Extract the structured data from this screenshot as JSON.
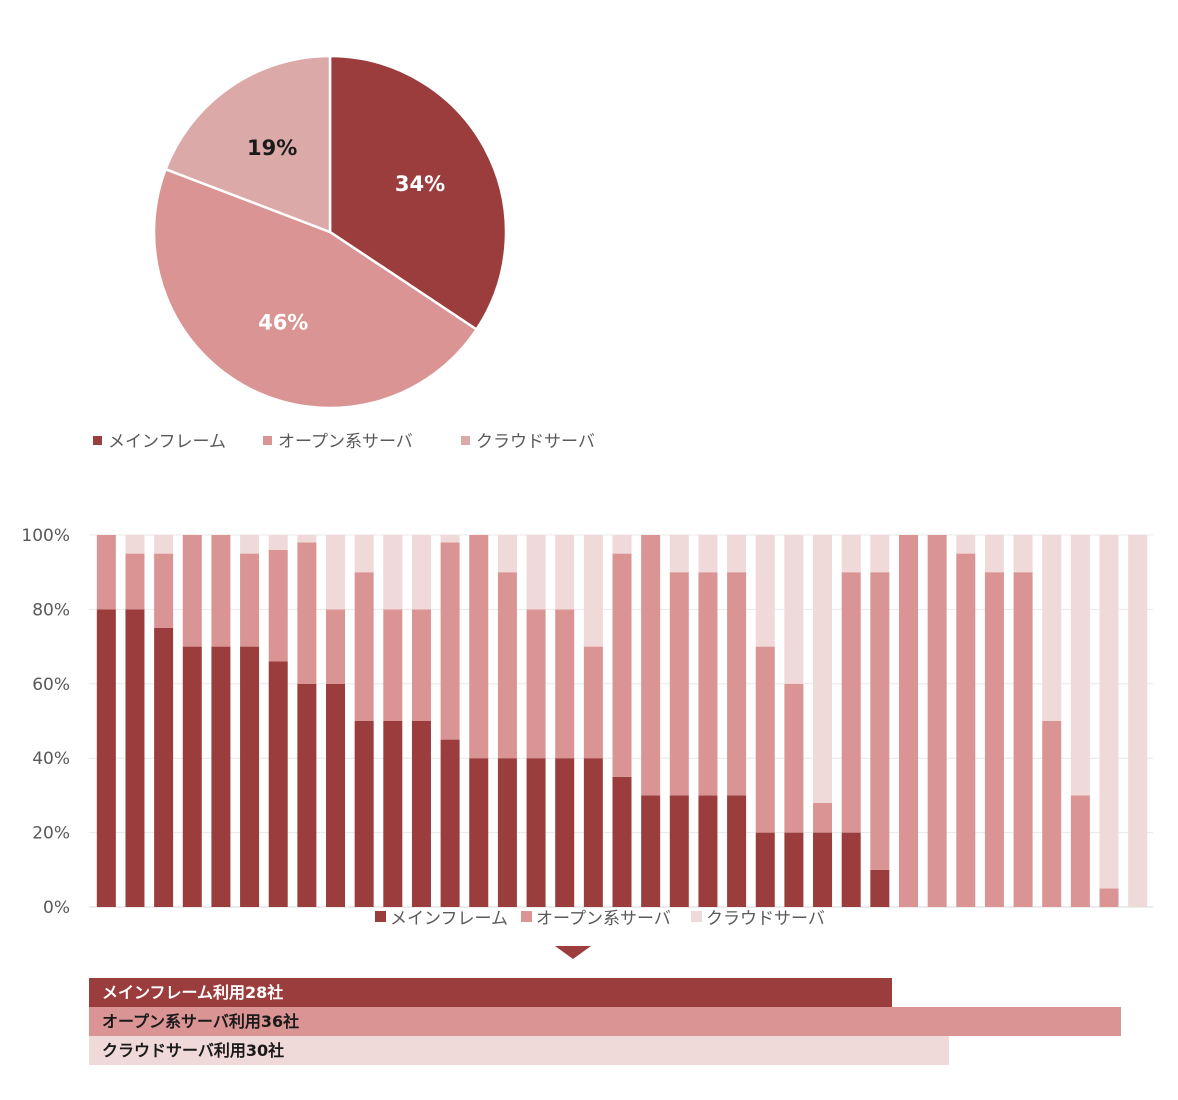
{
  "colors": {
    "mainframe": "#9b3d3c",
    "open": "#d99493",
    "cloud": "#f0d9d9",
    "cloud_pie": "#daa9a8",
    "label_dark": "#1a1a1a",
    "label_light": "#ffffff"
  },
  "chart_data": [
    {
      "type": "pie",
      "slices": [
        {
          "name": "メインフレーム",
          "value": 34,
          "label": "34%"
        },
        {
          "name": "オープン系サーバ",
          "value": 46,
          "label": "46%"
        },
        {
          "name": "クラウドサーバ",
          "value": 19,
          "label": "19%"
        }
      ],
      "legend_position": "bottom"
    },
    {
      "type": "bar",
      "stacked": true,
      "ylim": [
        0,
        100
      ],
      "yticks": [
        "0%",
        "20%",
        "40%",
        "60%",
        "80%",
        "100%"
      ],
      "ytick_values": [
        0,
        20,
        40,
        60,
        80,
        100
      ],
      "grid": true,
      "legend_position": "bottom",
      "series": [
        {
          "name": "メインフレーム",
          "values": [
            80,
            80,
            75,
            70,
            70,
            70,
            66,
            60,
            60,
            50,
            50,
            50,
            45,
            40,
            40,
            40,
            40,
            40,
            35,
            30,
            30,
            30,
            30,
            20,
            20,
            20,
            20,
            10,
            0,
            0,
            0,
            0,
            0,
            0,
            0,
            0,
            0
          ]
        },
        {
          "name": "オープン系サーバ",
          "values": [
            20,
            15,
            20,
            30,
            30,
            25,
            30,
            38,
            20,
            40,
            30,
            30,
            53,
            60,
            50,
            40,
            40,
            30,
            60,
            70,
            60,
            60,
            60,
            50,
            40,
            8,
            70,
            80,
            100,
            100,
            95,
            90,
            90,
            50,
            30,
            5,
            0
          ]
        },
        {
          "name": "クラウドサーバ",
          "values": [
            0,
            5,
            5,
            0,
            0,
            5,
            4,
            2,
            20,
            10,
            20,
            20,
            2,
            0,
            10,
            20,
            20,
            30,
            5,
            0,
            10,
            10,
            10,
            30,
            40,
            72,
            10,
            10,
            0,
            0,
            5,
            10,
            10,
            50,
            70,
            95,
            100
          ]
        }
      ]
    }
  ],
  "summary": {
    "mainframe": {
      "label": "メインフレーム利用28社",
      "count": 28
    },
    "open": {
      "label": "オープン系サーバ利用36社",
      "count": 36
    },
    "cloud": {
      "label": "クラウドサーバ利用30社",
      "count": 30
    }
  }
}
